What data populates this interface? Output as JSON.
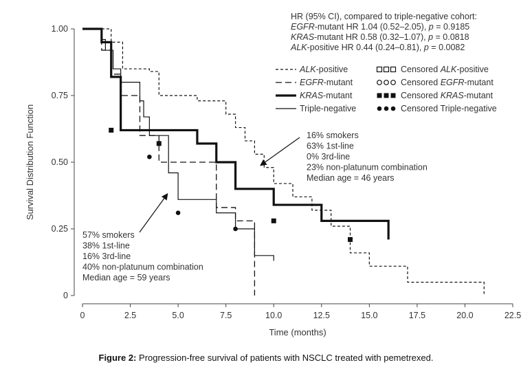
{
  "caption": {
    "label": "Figure 2:",
    "text": " Progression-free survival of patients with NSCLC treated with pemetrexed."
  },
  "chart_data": {
    "type": "line",
    "step": true,
    "xlabel": "Time (months)",
    "ylabel": "Survival Distribution Function",
    "xlim": [
      0,
      22.5
    ],
    "ylim": [
      0,
      1
    ],
    "x_ticks": [
      "0",
      "2.5",
      "5.0",
      "7.5",
      "10.0",
      "12.5",
      "15.0",
      "17.5",
      "20.0",
      "22.5"
    ],
    "x_tick_values": [
      0,
      2.5,
      5,
      7.5,
      10,
      12.5,
      15,
      17.5,
      20,
      22.5
    ],
    "y_ticks": [
      "0",
      "0.25",
      "0.50",
      "0.75",
      "1.00"
    ],
    "y_tick_values": [
      0,
      0.25,
      0.5,
      0.75,
      1.0
    ],
    "hr_box": [
      {
        "prefix": "HR (95% CI), compared to triple-negative cohort:",
        "italic": "",
        "rest": "",
        "p": ""
      },
      {
        "prefix": "",
        "italic": "EGFR",
        "rest": "-mutant HR 1.04 (0.52–2.05), ",
        "p": " = 0.9185"
      },
      {
        "prefix": "",
        "italic": "KRAS",
        "rest": "-mutant HR 0.58 (0.32–1.07), ",
        "p": " = 0.0818"
      },
      {
        "prefix": "",
        "italic": "ALK",
        "rest": "-positive HR 0.44 (0.24–0.81), ",
        "p": " = 0.0082"
      }
    ],
    "legend": [
      {
        "label_italic": "ALK",
        "label_rest": "-positive",
        "style": "dotted",
        "censored_italic": "ALK",
        "censored_prefix": "Censored ",
        "censored_rest": "-positive",
        "marker": "square-open"
      },
      {
        "label_italic": "EGFR",
        "label_rest": "-mutant",
        "style": "dashed",
        "censored_italic": "EGFR",
        "censored_prefix": "Censored ",
        "censored_rest": "-mutant",
        "marker": "circle-open"
      },
      {
        "label_italic": "KRAS",
        "label_rest": "-mutant",
        "style": "thick",
        "censored_italic": "KRAS",
        "censored_prefix": "Censored ",
        "censored_rest": "-mutant",
        "marker": "square-filled"
      },
      {
        "label_italic": "",
        "label_rest": "Triple-negative",
        "style": "thin",
        "censored_italic": "",
        "censored_prefix": "Censored ",
        "censored_rest": "Triple-negative",
        "marker": "circle-filled"
      }
    ],
    "series": [
      {
        "name": "ALK-positive",
        "style": "dotted",
        "x": [
          0,
          1.5,
          2.1,
          3.5,
          4.0,
          6.0,
          7.5,
          8.0,
          8.5,
          9.0,
          9.5,
          10.0,
          11.0,
          12.0,
          13.0,
          14.0,
          15.0,
          17.0,
          21.0
        ],
        "y": [
          1.0,
          0.95,
          0.85,
          0.84,
          0.75,
          0.73,
          0.68,
          0.63,
          0.58,
          0.53,
          0.48,
          0.42,
          0.37,
          0.32,
          0.26,
          0.16,
          0.11,
          0.05,
          0.0
        ],
        "censored": []
      },
      {
        "name": "EGFR-mutant",
        "style": "dashed",
        "x": [
          0,
          1.0,
          1.5,
          2.0,
          3.0,
          4.0,
          7.0,
          8.0,
          9.0
        ],
        "y": [
          1.0,
          0.92,
          0.83,
          0.75,
          0.6,
          0.5,
          0.33,
          0.28,
          0.0
        ],
        "censored": []
      },
      {
        "name": "KRAS-mutant",
        "style": "thick",
        "x": [
          0,
          1.0,
          1.5,
          2.0,
          6.0,
          7.0,
          8.0,
          10.0,
          12.5,
          16.0
        ],
        "y": [
          1.0,
          0.95,
          0.82,
          0.62,
          0.57,
          0.5,
          0.4,
          0.34,
          0.28,
          0.21
        ],
        "censored": [
          [
            1.5,
            0.62
          ],
          [
            4.0,
            0.57
          ],
          [
            10.0,
            0.28
          ],
          [
            14.0,
            0.21
          ]
        ]
      },
      {
        "name": "Triple-negative",
        "style": "thin",
        "x": [
          0,
          1.0,
          1.2,
          1.6,
          2.0,
          3.0,
          3.2,
          3.5,
          4.5,
          5.0,
          7.0,
          8.0,
          9.0,
          10.0
        ],
        "y": [
          1.0,
          0.96,
          0.92,
          0.85,
          0.8,
          0.73,
          0.67,
          0.6,
          0.46,
          0.36,
          0.31,
          0.25,
          0.15,
          0.13
        ],
        "censored": [
          [
            3.5,
            0.52
          ],
          [
            5.0,
            0.31
          ],
          [
            8.0,
            0.25
          ]
        ]
      }
    ],
    "annotations": [
      {
        "lines": [
          "16% smokers",
          "63% 1st-line",
          "0% 3rd-line",
          "23% non-platunum combination",
          "Median age = 46 years"
        ]
      },
      {
        "lines": [
          "57% smokers",
          "38% 1st-line",
          "16% 3rd-line",
          "40% non-platunum combination",
          "Median age = 59 years"
        ]
      }
    ]
  }
}
